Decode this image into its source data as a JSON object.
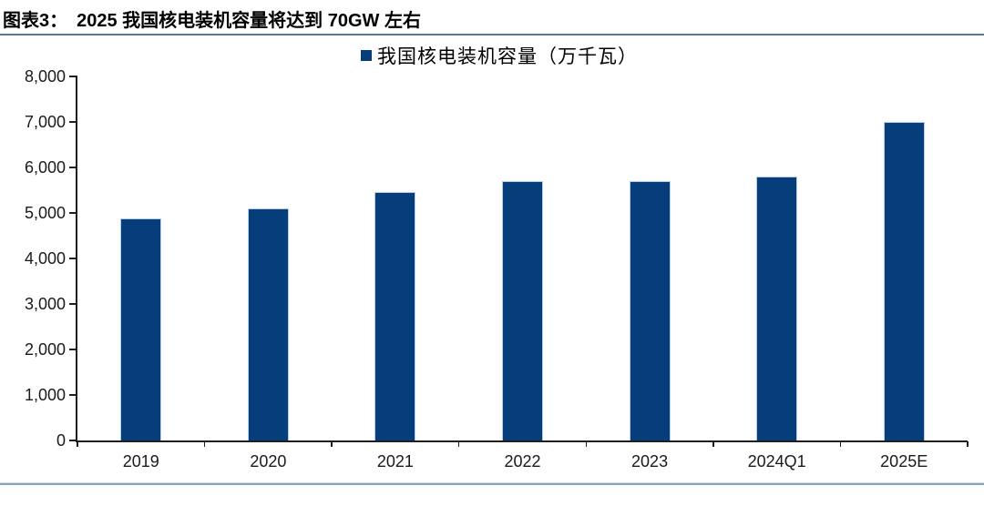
{
  "header": {
    "figure_label": "图表3：",
    "title": "2025 我国核电装机容量将达到 70GW 左右"
  },
  "chart_data": {
    "type": "bar",
    "categories": [
      "2019",
      "2020",
      "2021",
      "2022",
      "2023",
      "2024Q1",
      "2025E"
    ],
    "series": [
      {
        "name": "我国核电装机容量（万千瓦）",
        "values": [
          4875,
          5103,
          5465,
          5699,
          5703,
          5808,
          7000
        ]
      }
    ],
    "unit": "万千瓦",
    "xlabel": "",
    "ylabel": "",
    "ylim": [
      0,
      8000
    ],
    "ytick_values": [
      0,
      1000,
      2000,
      3000,
      4000,
      5000,
      6000,
      7000,
      8000
    ],
    "ytick_labels": [
      "0",
      "1,000",
      "2,000",
      "3,000",
      "4,000",
      "5,000",
      "6,000",
      "7,000",
      "8,000"
    ],
    "grid": false,
    "legend_position": "top-center"
  },
  "colors": {
    "bar": "#063e7c",
    "bar_edge": "#b7cee6",
    "axis": "#1f1f1f",
    "title_rule": "#54789a",
    "bottom_rule": "#8aa5bf",
    "text": "#000000"
  }
}
